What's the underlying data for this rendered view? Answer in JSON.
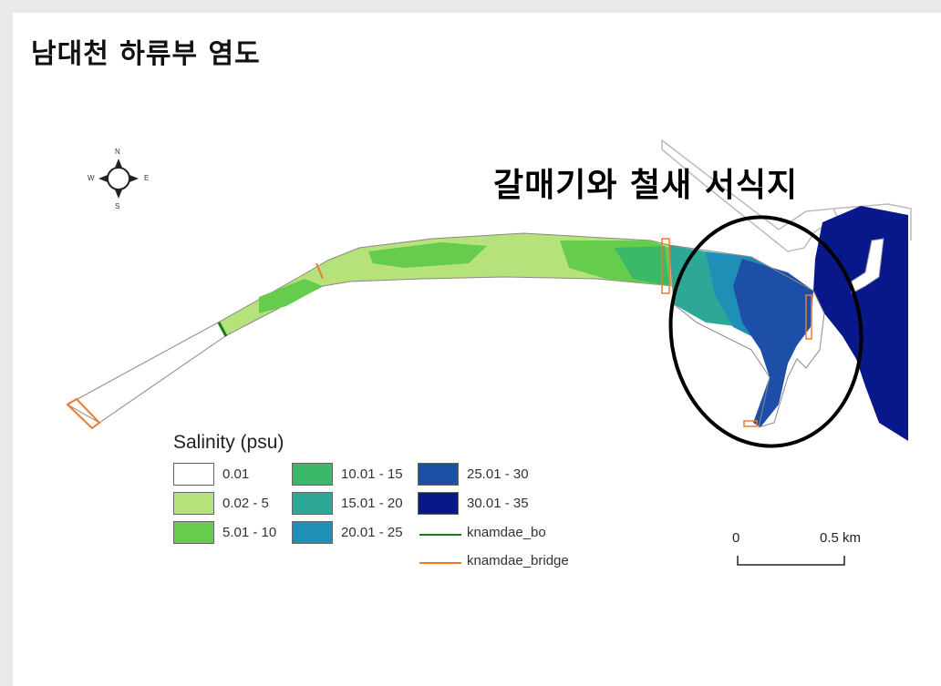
{
  "slide": {
    "title": "남대천 하류부 염도",
    "callout": "갈매기와 철새 서식지"
  },
  "compass": {
    "n": "N",
    "s": "S",
    "e": "E",
    "w": "W"
  },
  "legend": {
    "title": "Salinity (psu)",
    "items": [
      {
        "label": "0.01",
        "color": "#ffffff"
      },
      {
        "label": "0.02 - 5",
        "color": "#b5e27a"
      },
      {
        "label": "5.01 - 10",
        "color": "#66cc4c"
      },
      {
        "label": "10.01 - 15",
        "color": "#3cb86a"
      },
      {
        "label": "15.01 - 20",
        "color": "#2ea896"
      },
      {
        "label": "20.01 - 25",
        "color": "#1f8fb8"
      },
      {
        "label": "25.01 - 30",
        "color": "#1e4fa8"
      },
      {
        "label": "30.01 - 35",
        "color": "#08188a"
      }
    ],
    "lines": [
      {
        "label": "knamdae_bo",
        "color": "#1a7a1a"
      },
      {
        "label": "knamdae_bridge",
        "color": "#f07a30"
      }
    ]
  },
  "scale_bar": {
    "start": "0",
    "end": "0.5 km"
  }
}
